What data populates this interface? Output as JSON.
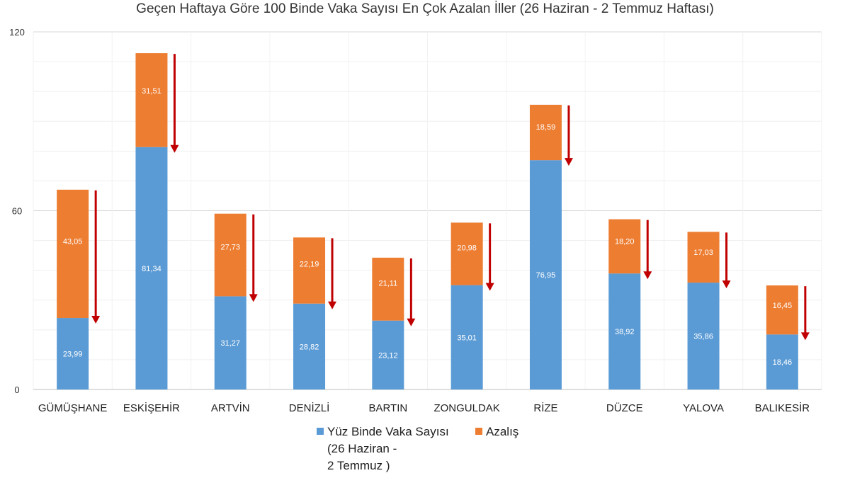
{
  "chart_data": {
    "type": "bar",
    "stacked": true,
    "title": "Geçen Haftaya Göre 100 Binde Vaka Sayısı En Çok Azalan İller (26 Haziran - 2 Temmuz Haftası)",
    "categories": [
      "GÜMÜŞHANE",
      "ESKİŞEHİR",
      "ARTVİN",
      "DENİZLİ",
      "BARTIN",
      "ZONGULDAK",
      "RİZE",
      "DÜZCE",
      "YALOVA",
      "BALIKESİR"
    ],
    "series": [
      {
        "name_lines": [
          "Yüz Binde Vaka Sayısı",
          "(26 Haziran -",
          "2 Temmuz )"
        ],
        "color": "#5b9bd5",
        "values": [
          23.99,
          81.34,
          31.27,
          28.82,
          23.12,
          35.01,
          76.95,
          38.92,
          35.86,
          18.46
        ],
        "labels": [
          "23,99",
          "81,34",
          "31,27",
          "28,82",
          "23,12",
          "35,01",
          "76,95",
          "38,92",
          "35,86",
          "18,46"
        ]
      },
      {
        "name": "Azalış",
        "color": "#ed7d31",
        "values": [
          43.05,
          31.51,
          27.73,
          22.19,
          21.11,
          20.98,
          18.59,
          18.2,
          17.03,
          16.45
        ],
        "labels": [
          "43,05",
          "31,51",
          "27,73",
          "22,19",
          "21,11",
          "20,98",
          "18,59",
          "18,20",
          "17,03",
          "16,45"
        ]
      }
    ],
    "ylim": [
      0,
      120
    ],
    "yticks": [
      0,
      60,
      120
    ],
    "grid": true,
    "legend_position": "bottom",
    "arrow_color": "#c00000"
  }
}
